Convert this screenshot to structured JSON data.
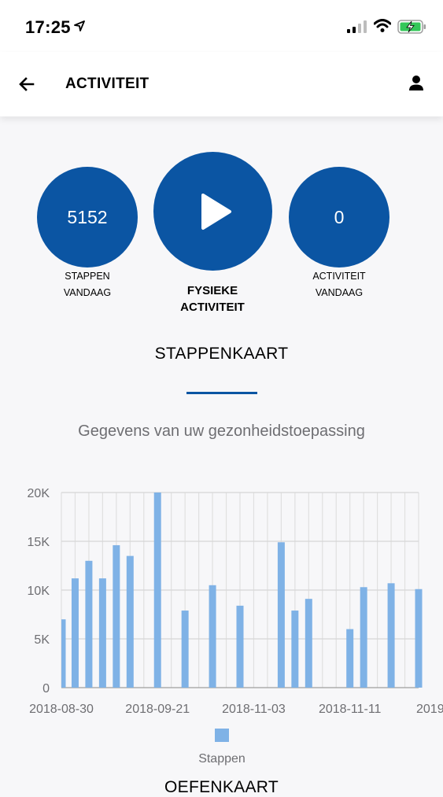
{
  "status_bar": {
    "time": "17:25"
  },
  "header": {
    "title": "ACTIVITEIT",
    "back_icon": "arrow-left-icon",
    "profile_icon": "person-icon"
  },
  "stats": {
    "steps_today": {
      "value": "5152",
      "label_line1": "STAPPEN",
      "label_line2": "VANDAAG"
    },
    "play": {
      "icon": "play-icon",
      "label_line1": "FYSIEKE",
      "label_line2": "ACTIVITEIT"
    },
    "activity_today": {
      "value": "0",
      "label_line1": "ACTIVITEIT",
      "label_line2": "VANDAAG"
    }
  },
  "steps_section": {
    "title": "STAPPENKAART",
    "subtitle": "Gegevens van uw gezonheidstoepassing"
  },
  "next_section": {
    "title": "OEFENKAART"
  },
  "colors": {
    "primary": "#0b55a3",
    "bar": "#7fb2e6"
  },
  "chart_data": {
    "type": "bar",
    "title": "",
    "xlabel": "",
    "ylabel": "",
    "ylim": [
      0,
      20000
    ],
    "yticks": [
      "0",
      "5K",
      "10K",
      "15K",
      "20K"
    ],
    "xticks": [
      "2018-08-30",
      "2018-09-21",
      "2018-11-03",
      "2018-11-11",
      "2019-"
    ],
    "legend": "Stappen",
    "series": [
      {
        "name": "Stappen",
        "values": [
          7000,
          11200,
          13000,
          11200,
          14600,
          13500,
          null,
          20000,
          null,
          7900,
          null,
          10500,
          null,
          8400,
          null,
          null,
          14900,
          7900,
          9100,
          null,
          null,
          6000,
          10300,
          null,
          10700,
          null,
          10100
        ]
      }
    ]
  }
}
